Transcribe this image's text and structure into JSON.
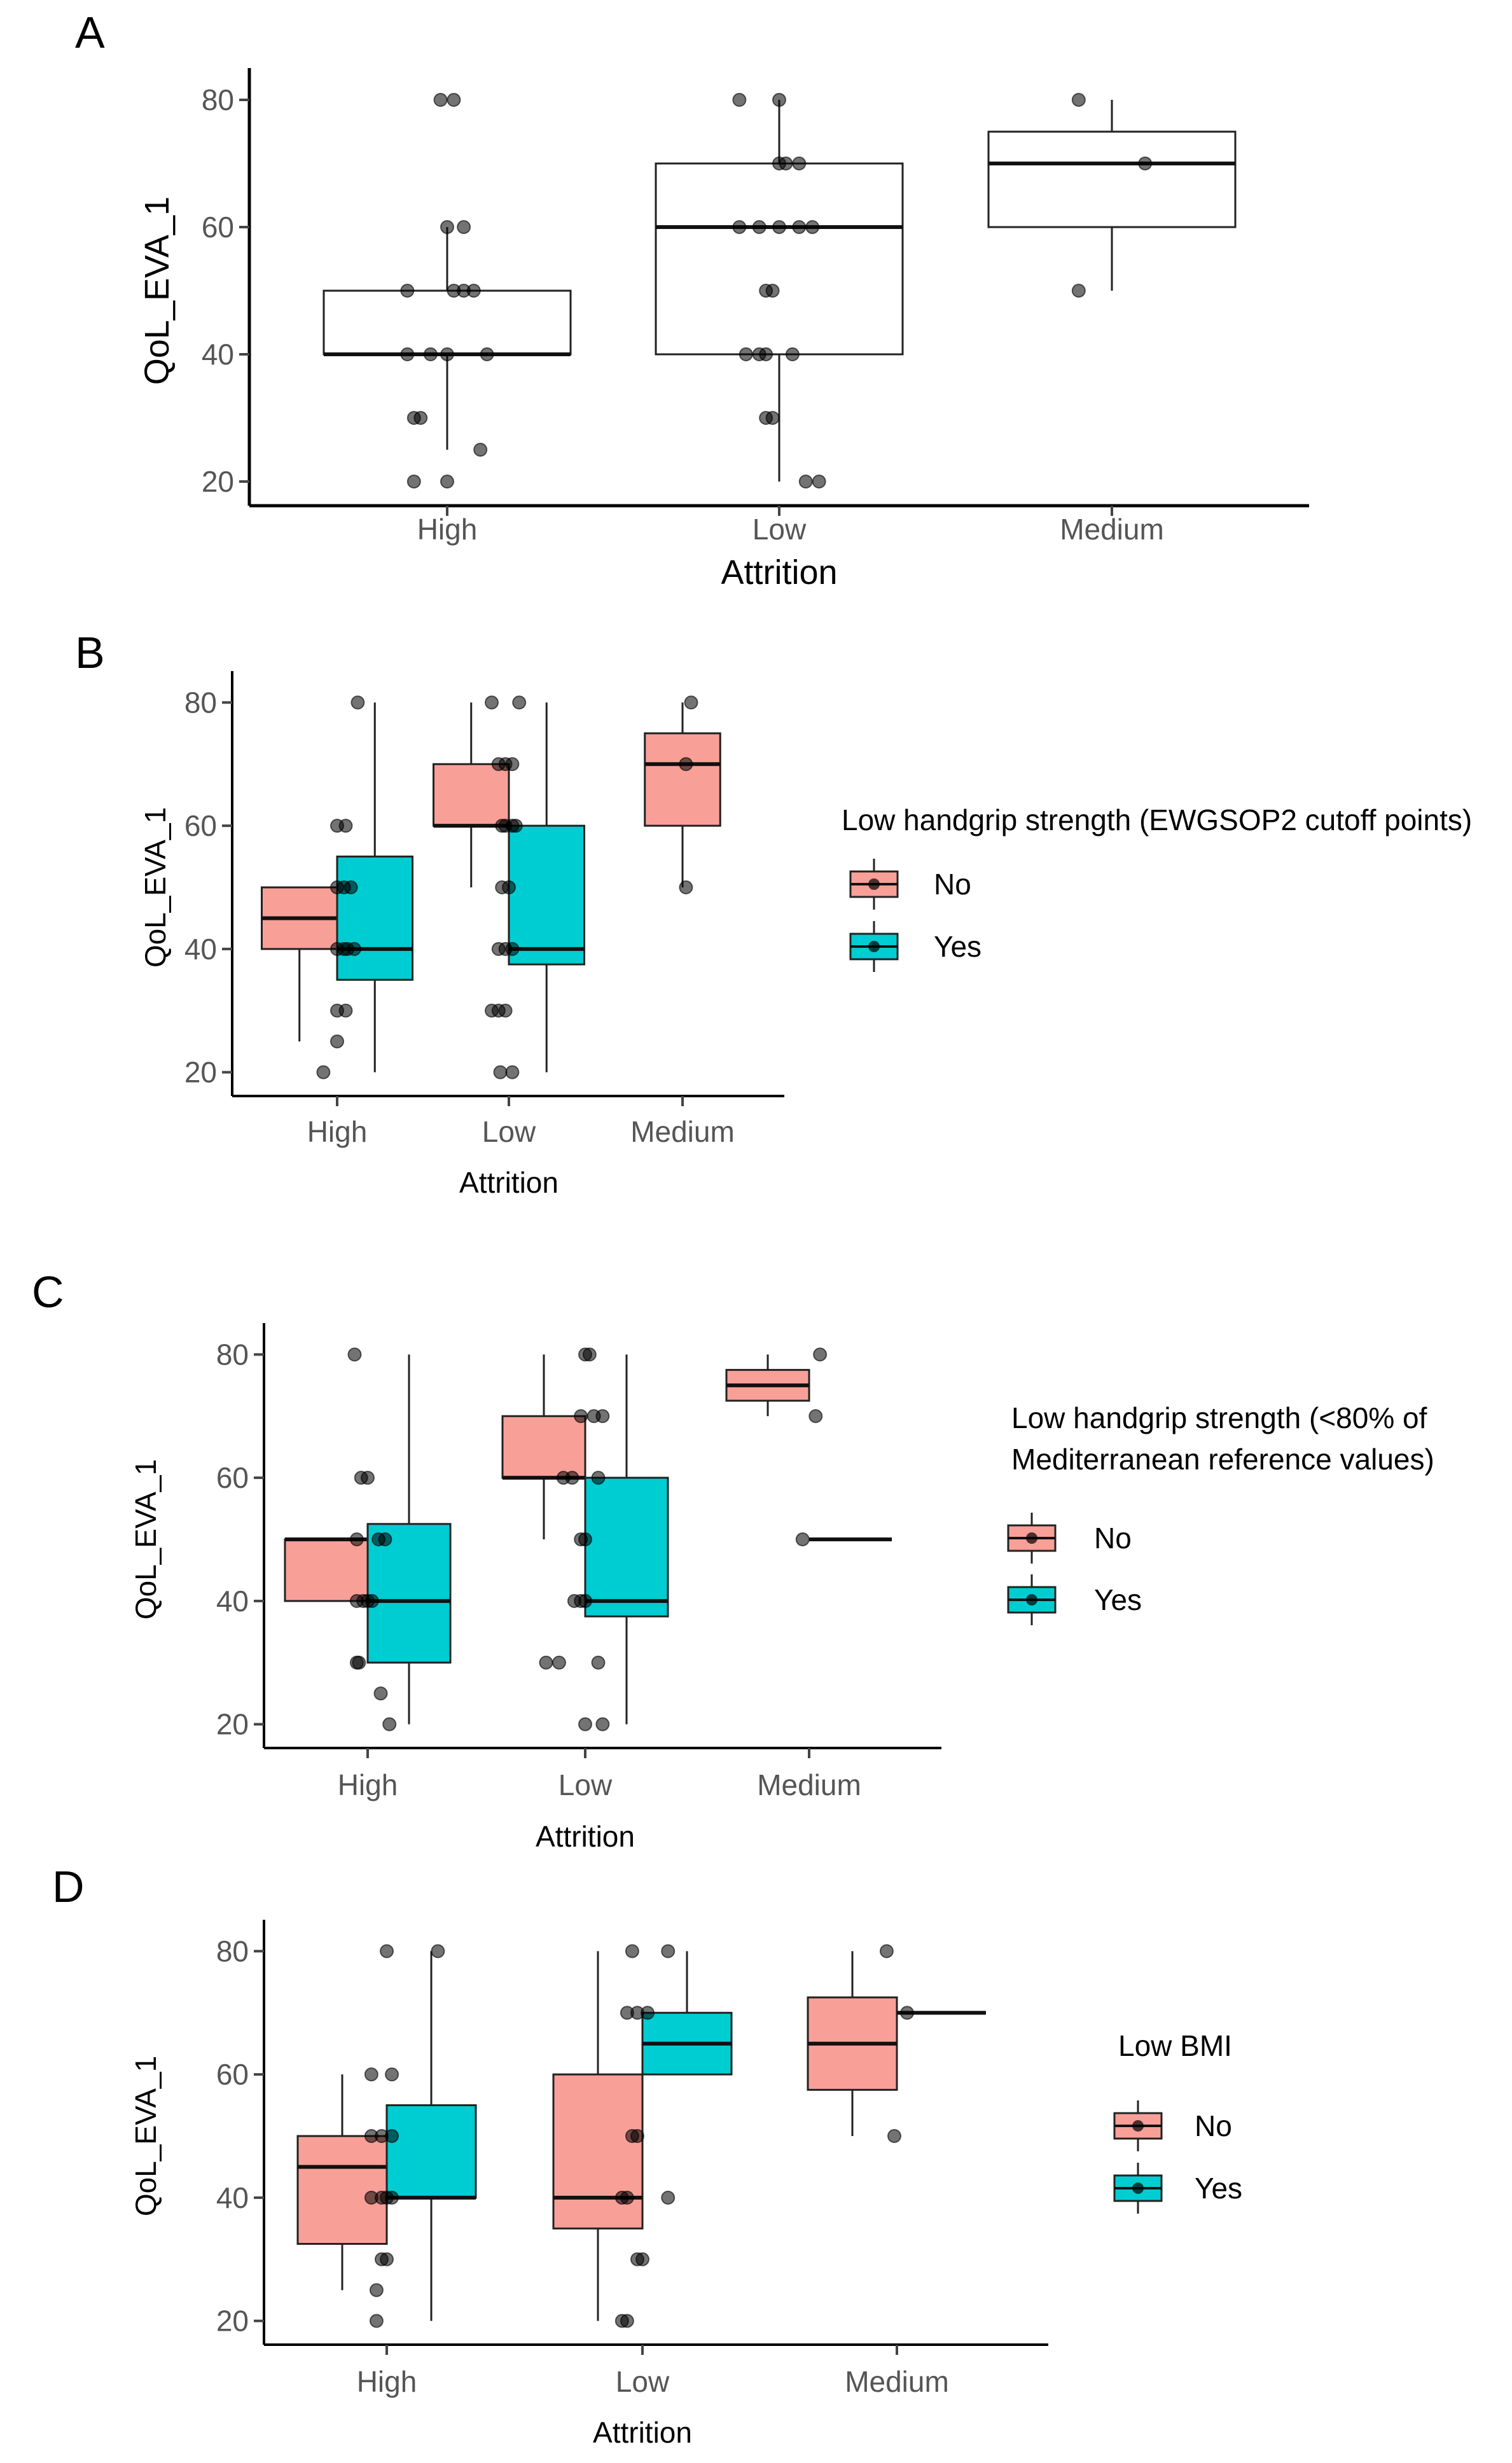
{
  "chart_data": [
    {
      "panel_label": "A",
      "type": "boxplot",
      "xlabel": "Attrition",
      "ylabel": "QoL_EVA_1",
      "ylim": [
        18,
        82
      ],
      "yticks": [
        20,
        40,
        60,
        80
      ],
      "categories": [
        "High",
        "Low",
        "Medium"
      ],
      "legend": null,
      "groups": [
        {
          "category": "High",
          "series": "all",
          "color": "#ffffff",
          "q1": 40,
          "median": 40,
          "q3": 50,
          "wlo": 25,
          "whi": 60
        },
        {
          "category": "Low",
          "series": "all",
          "color": "#ffffff",
          "q1": 40,
          "median": 60,
          "q3": 70,
          "wlo": 20,
          "whi": 80
        },
        {
          "category": "Medium",
          "series": "all",
          "color": "#ffffff",
          "q1": 60,
          "median": 70,
          "q3": 75,
          "wlo": 50,
          "whi": 80
        }
      ],
      "points": [
        {
          "category": "High",
          "values": [
            80,
            80,
            60,
            60,
            50,
            50,
            50,
            50,
            40,
            40,
            40,
            40,
            30,
            30,
            25,
            20,
            20
          ],
          "offsets": [
            -0.02,
            0.02,
            0,
            0.05,
            -0.12,
            0.02,
            0.05,
            0.08,
            -0.12,
            -0.05,
            0,
            0.12,
            -0.1,
            -0.08,
            0.1,
            -0.1,
            0
          ]
        },
        {
          "category": "Low",
          "values": [
            80,
            80,
            70,
            70,
            70,
            60,
            60,
            60,
            60,
            60,
            50,
            50,
            40,
            40,
            40,
            40,
            30,
            30,
            20,
            20
          ],
          "offsets": [
            -0.12,
            0,
            0,
            0.02,
            0.06,
            -0.12,
            -0.06,
            0,
            0.06,
            0.1,
            -0.04,
            -0.02,
            -0.1,
            -0.06,
            -0.04,
            0.04,
            -0.04,
            -0.02,
            0.08,
            0.12
          ]
        },
        {
          "category": "Medium",
          "values": [
            80,
            70,
            50
          ],
          "offsets": [
            -0.1,
            0.1,
            -0.1
          ]
        }
      ]
    },
    {
      "panel_label": "B",
      "type": "boxplot",
      "xlabel": "Attrition",
      "ylabel": "QoL_EVA_1",
      "ylim": [
        18,
        82
      ],
      "yticks": [
        20,
        40,
        60,
        80
      ],
      "categories": [
        "High",
        "Low",
        "Medium"
      ],
      "legend": {
        "title": "Low handgrip strength (EWGSOP2 cutoff points)",
        "entries": [
          "No",
          "Yes"
        ],
        "colors": [
          "#f8a098",
          "#00cdd2"
        ]
      },
      "groups": [
        {
          "category": "High",
          "series": "No",
          "color": "#f8a098",
          "q1": 40,
          "median": 45,
          "q3": 50,
          "wlo": 25,
          "whi": 50
        },
        {
          "category": "High",
          "series": "Yes",
          "color": "#00cdd2",
          "q1": 35,
          "median": 40,
          "q3": 55,
          "wlo": 20,
          "whi": 80
        },
        {
          "category": "Low",
          "series": "No",
          "color": "#f8a098",
          "q1": 60,
          "median": 60,
          "q3": 70,
          "wlo": 50,
          "whi": 80
        },
        {
          "category": "Low",
          "series": "Yes",
          "color": "#00cdd2",
          "q1": 37.5,
          "median": 40,
          "q3": 60,
          "wlo": 20,
          "whi": 80
        },
        {
          "category": "Medium",
          "series": "No",
          "color": "#f8a098",
          "q1": 60,
          "median": 70,
          "q3": 75,
          "wlo": 50,
          "whi": 80
        }
      ],
      "points": [
        {
          "category": "High",
          "values": [
            80,
            60,
            60,
            50,
            50,
            50,
            40,
            40,
            40,
            40,
            30,
            30,
            25,
            20
          ],
          "offsets": [
            0.12,
            0,
            0.05,
            0,
            0.04,
            0.08,
            0,
            0.04,
            0.06,
            0.1,
            0,
            0.05,
            0,
            -0.08
          ]
        },
        {
          "category": "Low",
          "values": [
            80,
            80,
            70,
            70,
            70,
            60,
            60,
            60,
            60,
            50,
            50,
            40,
            40,
            40,
            30,
            30,
            30,
            20,
            20
          ],
          "offsets": [
            -0.1,
            0.06,
            -0.06,
            -0.02,
            0.02,
            -0.04,
            -0.02,
            0.02,
            0.04,
            -0.04,
            0,
            -0.06,
            -0.02,
            0.02,
            -0.1,
            -0.06,
            -0.02,
            -0.05,
            0.02
          ]
        },
        {
          "category": "Medium",
          "values": [
            80,
            70,
            50
          ],
          "offsets": [
            0.05,
            0.02,
            0.02
          ]
        }
      ]
    },
    {
      "panel_label": "C",
      "type": "boxplot",
      "xlabel": "Attrition",
      "ylabel": "QoL_EVA_1",
      "ylim": [
        18,
        82
      ],
      "yticks": [
        20,
        40,
        60,
        80
      ],
      "categories": [
        "High",
        "Low",
        "Medium"
      ],
      "legend": {
        "title_lines": [
          "Low handgrip strength (<80% of",
          "Mediterranean reference values)"
        ],
        "entries": [
          "No",
          "Yes"
        ],
        "colors": [
          "#f8a098",
          "#00cdd2"
        ]
      },
      "groups": [
        {
          "category": "High",
          "series": "No",
          "color": "#f8a098",
          "q1": 40,
          "median": 50,
          "q3": 50,
          "wlo": 40,
          "whi": 50
        },
        {
          "category": "High",
          "series": "Yes",
          "color": "#00cdd2",
          "q1": 30,
          "median": 40,
          "q3": 52.5,
          "wlo": 20,
          "whi": 80
        },
        {
          "category": "Low",
          "series": "No",
          "color": "#f8a098",
          "q1": 60,
          "median": 60,
          "q3": 70,
          "wlo": 50,
          "whi": 80
        },
        {
          "category": "Low",
          "series": "Yes",
          "color": "#00cdd2",
          "q1": 37.5,
          "median": 40,
          "q3": 60,
          "wlo": 20,
          "whi": 80
        },
        {
          "category": "Medium",
          "series": "No",
          "color": "#f8a098",
          "q1": 72.5,
          "median": 75,
          "q3": 77.5,
          "wlo": 70,
          "whi": 80
        },
        {
          "category": "Medium",
          "series": "Yes",
          "color": "#00cdd2",
          "q1": 50,
          "median": 50,
          "q3": 50,
          "wlo": 50,
          "whi": 50
        }
      ],
      "points": [
        {
          "category": "High",
          "values": [
            80,
            60,
            60,
            50,
            50,
            50,
            40,
            40,
            40,
            40,
            30,
            30,
            25,
            20
          ],
          "offsets": [
            -0.06,
            -0.03,
            0,
            -0.05,
            0.05,
            0.08,
            -0.05,
            -0.02,
            0,
            0.02,
            -0.05,
            -0.04,
            0.06,
            0.1
          ]
        },
        {
          "category": "Low",
          "values": [
            80,
            80,
            70,
            70,
            70,
            60,
            60,
            60,
            50,
            50,
            40,
            40,
            40,
            30,
            30,
            30,
            20,
            20
          ],
          "offsets": [
            0,
            0.02,
            -0.02,
            0.04,
            0.08,
            -0.1,
            -0.06,
            0.06,
            -0.02,
            0,
            -0.05,
            -0.02,
            0,
            -0.18,
            -0.12,
            0.06,
            0,
            0.08
          ]
        },
        {
          "category": "Medium",
          "values": [
            80,
            70,
            50
          ],
          "offsets": [
            0.05,
            0.03,
            -0.03
          ]
        }
      ]
    },
    {
      "panel_label": "D",
      "type": "boxplot",
      "xlabel": "Attrition",
      "ylabel": "QoL_EVA_1",
      "ylim": [
        18,
        82
      ],
      "yticks": [
        20,
        40,
        60,
        80
      ],
      "categories": [
        "High",
        "Low",
        "Medium"
      ],
      "legend": {
        "title": "Low BMI",
        "entries": [
          "No",
          "Yes"
        ],
        "colors": [
          "#f8a098",
          "#00cdd2"
        ]
      },
      "groups": [
        {
          "category": "High",
          "series": "No",
          "color": "#f8a098",
          "q1": 32.5,
          "median": 45,
          "q3": 50,
          "wlo": 25,
          "whi": 60
        },
        {
          "category": "High",
          "series": "Yes",
          "color": "#00cdd2",
          "q1": 40,
          "median": 40,
          "q3": 55,
          "wlo": 20,
          "whi": 80
        },
        {
          "category": "Low",
          "series": "No",
          "color": "#f8a098",
          "q1": 35,
          "median": 40,
          "q3": 60,
          "wlo": 20,
          "whi": 80
        },
        {
          "category": "Low",
          "series": "Yes",
          "color": "#00cdd2",
          "q1": 60,
          "median": 65,
          "q3": 70,
          "wlo": 60,
          "whi": 80
        },
        {
          "category": "Medium",
          "series": "No",
          "color": "#f8a098",
          "q1": 57.5,
          "median": 65,
          "q3": 72.5,
          "wlo": 50,
          "whi": 80
        },
        {
          "category": "Medium",
          "series": "Yes",
          "color": "#00cdd2",
          "q1": 70,
          "median": 70,
          "q3": 70,
          "wlo": 70,
          "whi": 70
        }
      ],
      "points": [
        {
          "category": "High",
          "values": [
            80,
            80,
            60,
            60,
            50,
            50,
            50,
            40,
            40,
            40,
            40,
            30,
            30,
            25,
            20
          ],
          "offsets": [
            0,
            0.2,
            -0.06,
            0.02,
            -0.06,
            -0.02,
            0.02,
            -0.06,
            -0.02,
            0,
            0.02,
            -0.02,
            0,
            -0.04,
            -0.04
          ]
        },
        {
          "category": "Low",
          "values": [
            80,
            80,
            70,
            70,
            70,
            50,
            50,
            40,
            40,
            40,
            30,
            30,
            20,
            20
          ],
          "offsets": [
            -0.04,
            0.1,
            -0.06,
            -0.02,
            0.02,
            -0.04,
            -0.02,
            -0.08,
            -0.06,
            0.1,
            -0.02,
            0,
            -0.08,
            -0.06
          ]
        },
        {
          "category": "Medium",
          "values": [
            80,
            70,
            50
          ],
          "offsets": [
            -0.04,
            0.04,
            -0.01
          ]
        }
      ]
    }
  ]
}
